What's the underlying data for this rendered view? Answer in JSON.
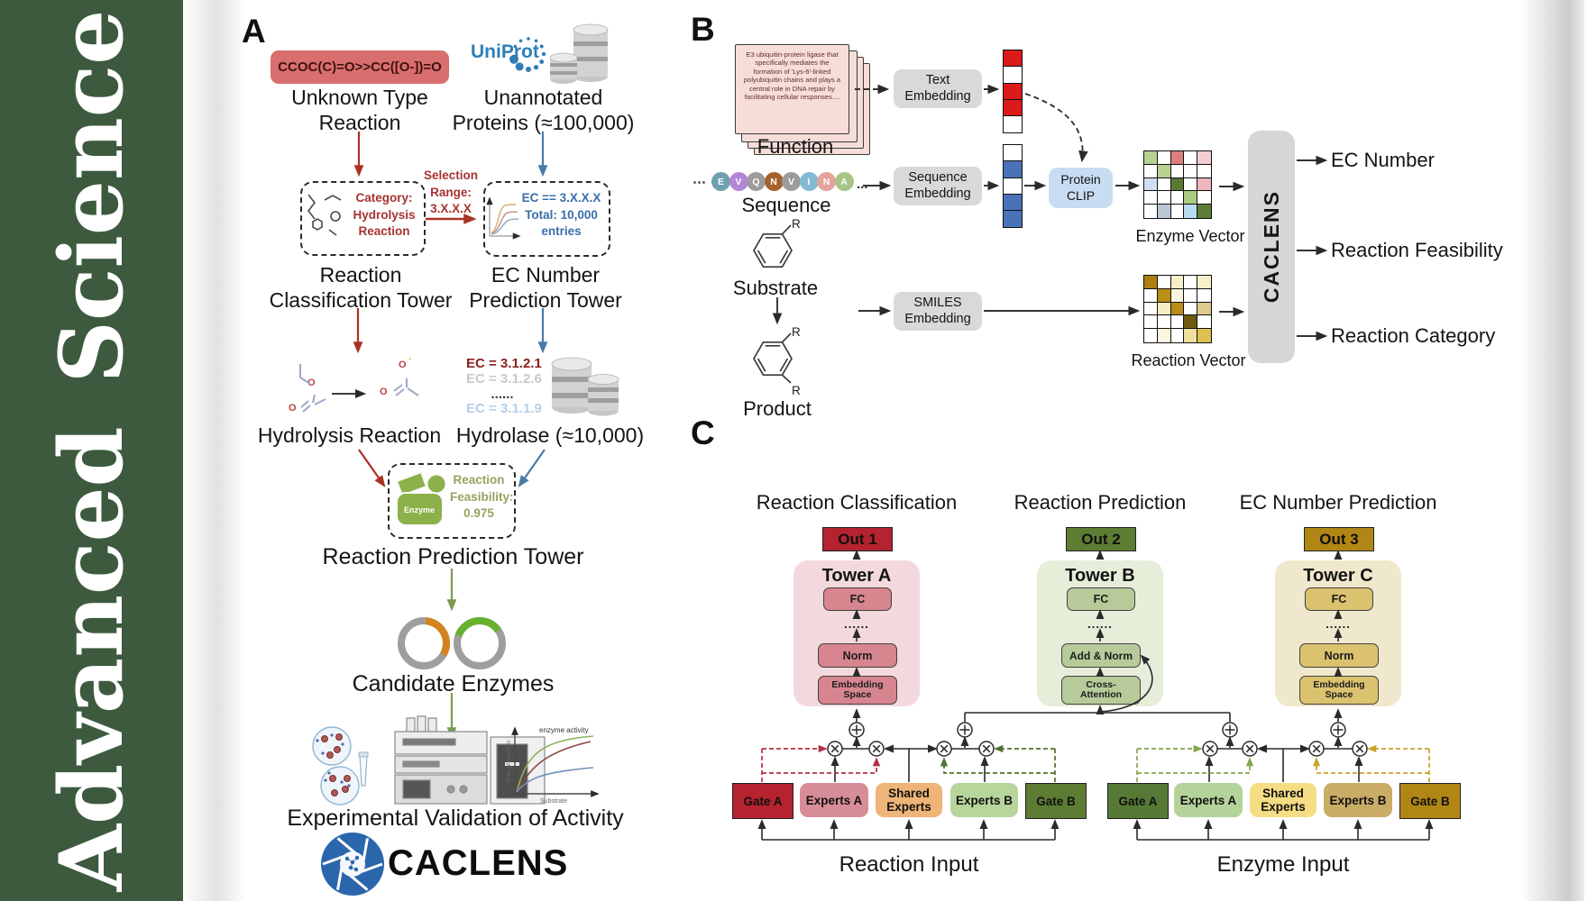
{
  "sidebar": {
    "word1": "Advanced",
    "word2": "Science",
    "bg": "#3d5a3e"
  },
  "panelA": {
    "label": "A",
    "smiles": "CCOC(C)=O>>CC([O-])=O",
    "unknown_line1": "Unknown Type",
    "unknown_line2": "Reaction",
    "uniprot": "UniProt",
    "unannotated_line1": "Unannotated",
    "unannotated_line2": "Proteins (≈100,000)",
    "category": [
      "Category:",
      "Hydrolysis",
      "Reaction"
    ],
    "selection": [
      "Selection",
      "Range:",
      "3.X.X.X"
    ],
    "ec_filter": [
      "EC == 3.X.X.X",
      "Total: 10,000",
      "entries"
    ],
    "tower1_line1": "Rea&#99;tion",
    "tower1_line2": "Classification Tower",
    "tower2_line1": "EC Number",
    "tower2_line2": "Prediction Tower",
    "atom_o": "O",
    "atom_minus": "-",
    "hydrolysis": "Hydrolysis Reaction",
    "ec_list": [
      {
        "text": "EC = 3.1.2.1",
        "color": "#8b1f1f"
      },
      {
        "text": "EC = 3.1.2.6",
        "color": "#c9c9c9"
      },
      {
        "text": "......",
        "color": "#3a3a3a"
      },
      {
        "text": "EC = 3.1.1.9",
        "color": "#b6cfe6"
      }
    ],
    "hydrolase": "Hydrolase (≈10,000)",
    "enzyme_blob": "Enzyme",
    "feasibility": [
      "Reaction",
      "Feasibility:",
      "0.975"
    ],
    "tower3": "Reaction Prediction Tower",
    "candidate": "Candidate Enzymes",
    "graph": {
      "curve_label": "enzyme activity",
      "ylabel": "Rate of reaction",
      "xlabel": "Substrate"
    },
    "validation": "Experimental Validation of Activity",
    "logo": "CACLENS"
  },
  "panelB": {
    "label": "B",
    "function_text": "E3 ubiquitin-protein ligase that specifically mediates the formation of 'Lys-6'-linked polyubiquitin chains and plays a central role in DNA repair by facilitating cellular responses....",
    "function_label": "Function",
    "text_embedding_line1": "Text",
    "text_embedding_line2": "Embedding",
    "seq_pre": "⋯",
    "seq_post": "...",
    "residues": [
      {
        "letter": "E",
        "color": "#6fa0ae"
      },
      {
        "letter": "V",
        "color": "#b285d6"
      },
      {
        "letter": "Q",
        "color": "#9c9c9c"
      },
      {
        "letter": "N",
        "color": "#a5622f"
      },
      {
        "letter": "V",
        "color": "#9c9c9c"
      },
      {
        "letter": "I",
        "color": "#82bcd4"
      },
      {
        "letter": "N",
        "color": "#e6a29c"
      },
      {
        "letter": "A",
        "color": "#a9c487"
      }
    ],
    "sequence_label": "Sequence",
    "sequence_embedding_line1": "Sequence",
    "sequence_embedding_line2": "Embedding",
    "protein_clip_line1": "Protein",
    "protein_clip_line2": "CLIP",
    "text_vector": [
      "#dd1a1a",
      "#ffffff",
      "#dd1a1a",
      "#dd1a1a",
      "#ffffff"
    ],
    "seq_vector": [
      "#ffffff",
      "#4a72b8",
      "#ffffff",
      "#4a72b8",
      "#4a72b8"
    ],
    "enzyme_vector_label": "Enzyme Vector",
    "enzyme_vector": [
      [
        "#b7d190",
        "#ffffff",
        "#df7f7c",
        "#ffffff",
        "#f4cdd2"
      ],
      [
        "#ffffff",
        "#b8d28f",
        "#ffffff",
        "#ffffff",
        "#ffffff"
      ],
      [
        "#cfdff2",
        "#ffffff",
        "#5a7a33",
        "#ffffff",
        "#efb6be"
      ],
      [
        "#ffffff",
        "#ffffff",
        "#ffffff",
        "#abcb80",
        "#ffffff"
      ],
      [
        "#ffffff",
        "#bcc7d6",
        "#ffffff",
        "#badcf0",
        "#5d7c35"
      ]
    ],
    "substrate_label": "Substrate",
    "product_label": "Product",
    "r_label": "R",
    "smiles_embedding_line1": "SMILES",
    "smiles_embedding_line2": "Embedding",
    "reaction_vector_label": "Reaction Vector",
    "reaction_vector": [
      [
        "#ad7f10",
        "#ffffff",
        "#f6efc9",
        "#ffffff",
        "#f6efc9"
      ],
      [
        "#ffffff",
        "#bb8d15",
        "#faf5df",
        "#ffffff",
        "#ffffff"
      ],
      [
        "#ffffff",
        "#f4ecc3",
        "#bb8d15",
        "#ffffff",
        "#dfc98c"
      ],
      [
        "#ffffff",
        "#ffffff",
        "#ffffff",
        "#6e5a10",
        "#ffffff"
      ],
      [
        "#ffffff",
        "#faf5df",
        "#ffffff",
        "#f0e0a0",
        "#ddc050"
      ]
    ],
    "caclens": "CACLENS",
    "outputs": [
      "EC Number",
      "Reaction Feasibility",
      "Reaction Category"
    ]
  },
  "panelC": {
    "label": "C",
    "columns": [
      {
        "header": "Reaction Classification",
        "out": "Out 1",
        "tower": "Tower A",
        "fc": "FC",
        "dots": "......",
        "norm": "Norm",
        "bottom_line1": "Embedding",
        "bottom_line2": "Space"
      },
      {
        "header": "Reaction Prediction",
        "out": "Out 2",
        "tower": "Tower B",
        "fc": "FC",
        "dots": "......",
        "norm": "Add & Norm",
        "bottom_line1": "Cross-",
        "bottom_line2": "Attention"
      },
      {
        "header": "EC Number Prediction",
        "out": "Out 3",
        "tower": "Tower C",
        "fc": "FC",
        "dots": "......",
        "norm": "Norm",
        "bottom_line1": "Embedding",
        "bottom_line2": "Space"
      }
    ],
    "groups": [
      {
        "gate_a": "Gate A",
        "experts_a": "Experts A",
        "shared_line1": "Shared",
        "shared_line2": "Experts",
        "experts_b": "Experts B",
        "gate_b": "Gate B",
        "input": "Reaction Input"
      },
      {
        "gate_a": "Gate A",
        "experts_a": "Experts A",
        "shared_line1": "Shared",
        "shared_line2": "Experts",
        "experts_b": "Experts B",
        "gate_b": "Gate B",
        "input": "Enzyme Input"
      }
    ]
  },
  "colors": {
    "sidebar_green": "#3d5a3e",
    "smiles_red": "#d96e6e",
    "arrow_red": "#a93226",
    "arrow_blue": "#4a7ba6",
    "arrow_green": "#7a9a50",
    "crimson": "#b4232f",
    "olive_green": "#5d7d33",
    "dark_gold": "#b08615",
    "tower_a_bg": "#f3d9dd",
    "tower_b_bg": "#e6eeda",
    "tower_c_bg": "#f0e8cc",
    "block_a": "#d7858e",
    "block_b": "#b7cb9a",
    "block_c": "#dac26f",
    "experts_a_left": "#d78d97",
    "shared_left": "#eeb478",
    "experts_b_left": "#b7d69b",
    "gate_a_right": "#567a36",
    "experts_a_right": "#b4d39b",
    "shared_right": "#f6dd84",
    "experts_b_right": "#c9ad67",
    "protein_clip_bg": "#c8dcf2",
    "embedding_gray": "#d9d9d9",
    "caclens_pill": "#d6d6d6"
  }
}
